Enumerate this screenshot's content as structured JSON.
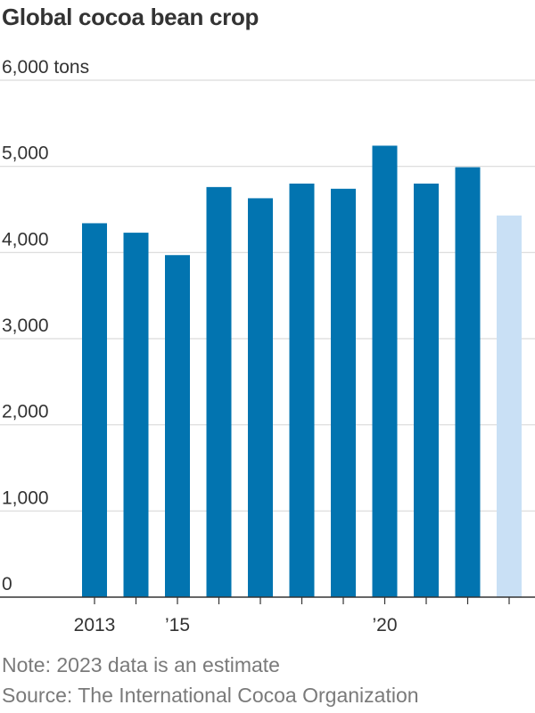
{
  "header": {
    "title": "Global cocoa bean crop"
  },
  "chart_data": {
    "type": "bar",
    "title": "Global cocoa bean crop",
    "x": [
      2013,
      2014,
      2015,
      2016,
      2017,
      2018,
      2019,
      2020,
      2021,
      2022,
      2023
    ],
    "values": [
      4340,
      4230,
      3970,
      4760,
      4630,
      4800,
      4740,
      5240,
      4800,
      4990,
      4430
    ],
    "estimate_flags": [
      false,
      false,
      false,
      false,
      false,
      false,
      false,
      false,
      false,
      false,
      true
    ],
    "ylabel": "",
    "ylim": [
      0,
      6000
    ],
    "y_ticks": [
      0,
      1000,
      2000,
      3000,
      4000,
      5000,
      6000
    ],
    "y_tick_labels": [
      "0",
      "1,000",
      "2,000",
      "3,000",
      "4,000",
      "5,000",
      "6,000 tons"
    ],
    "x_tick_labels": [
      {
        "x": 2013,
        "label": "2013"
      },
      {
        "x": 2015,
        "label": "’15"
      },
      {
        "x": 2020,
        "label": "’20"
      }
    ],
    "grid": true,
    "colors": {
      "actual": "#0274b0",
      "estimate": "#c9e0f5",
      "grid": "#d9d9d9",
      "axis": "#333333"
    }
  },
  "footer": {
    "note": "Note: 2023 data is an estimate",
    "source": "Source: The International Cocoa Organization"
  }
}
